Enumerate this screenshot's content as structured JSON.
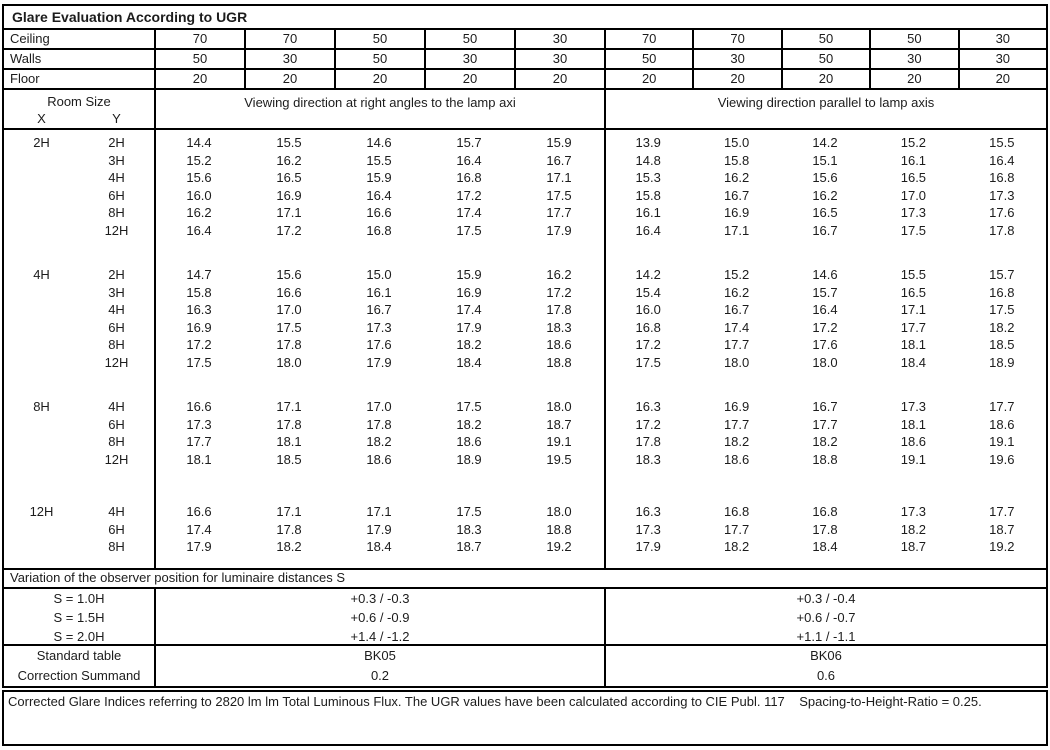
{
  "title": "Glare Evaluation According to UGR",
  "surfaces": {
    "rows": [
      {
        "label": "Ceiling",
        "values": [
          "70",
          "70",
          "50",
          "50",
          "30",
          "70",
          "70",
          "50",
          "50",
          "30"
        ]
      },
      {
        "label": "Walls",
        "values": [
          "50",
          "30",
          "50",
          "30",
          "30",
          "50",
          "30",
          "50",
          "30",
          "30"
        ]
      },
      {
        "label": "Floor",
        "values": [
          "20",
          "20",
          "20",
          "20",
          "20",
          "20",
          "20",
          "20",
          "20",
          "20"
        ]
      }
    ]
  },
  "header": {
    "room_size": "Room Size",
    "x": "X",
    "y": "Y",
    "left_group": "Viewing direction at right angles to the lamp axi",
    "right_group": "Viewing direction parallel to lamp axis"
  },
  "ugr_table": {
    "blocks": [
      {
        "x": "2H",
        "rows": [
          {
            "y": "2H",
            "values": [
              "14.4",
              "15.5",
              "14.6",
              "15.7",
              "15.9",
              "13.9",
              "15.0",
              "14.2",
              "15.2",
              "15.5"
            ]
          },
          {
            "y": "3H",
            "values": [
              "15.2",
              "16.2",
              "15.5",
              "16.4",
              "16.7",
              "14.8",
              "15.8",
              "15.1",
              "16.1",
              "16.4"
            ]
          },
          {
            "y": "4H",
            "values": [
              "15.6",
              "16.5",
              "15.9",
              "16.8",
              "17.1",
              "15.3",
              "16.2",
              "15.6",
              "16.5",
              "16.8"
            ]
          },
          {
            "y": "6H",
            "values": [
              "16.0",
              "16.9",
              "16.4",
              "17.2",
              "17.5",
              "15.8",
              "16.7",
              "16.2",
              "17.0",
              "17.3"
            ]
          },
          {
            "y": "8H",
            "values": [
              "16.2",
              "17.1",
              "16.6",
              "17.4",
              "17.7",
              "16.1",
              "16.9",
              "16.5",
              "17.3",
              "17.6"
            ]
          },
          {
            "y": "12H",
            "values": [
              "16.4",
              "17.2",
              "16.8",
              "17.5",
              "17.9",
              "16.4",
              "17.1",
              "16.7",
              "17.5",
              "17.8"
            ]
          }
        ]
      },
      {
        "x": "4H",
        "rows": [
          {
            "y": "2H",
            "values": [
              "14.7",
              "15.6",
              "15.0",
              "15.9",
              "16.2",
              "14.2",
              "15.2",
              "14.6",
              "15.5",
              "15.7"
            ]
          },
          {
            "y": "3H",
            "values": [
              "15.8",
              "16.6",
              "16.1",
              "16.9",
              "17.2",
              "15.4",
              "16.2",
              "15.7",
              "16.5",
              "16.8"
            ]
          },
          {
            "y": "4H",
            "values": [
              "16.3",
              "17.0",
              "16.7",
              "17.4",
              "17.8",
              "16.0",
              "16.7",
              "16.4",
              "17.1",
              "17.5"
            ]
          },
          {
            "y": "6H",
            "values": [
              "16.9",
              "17.5",
              "17.3",
              "17.9",
              "18.3",
              "16.8",
              "17.4",
              "17.2",
              "17.7",
              "18.2"
            ]
          },
          {
            "y": "8H",
            "values": [
              "17.2",
              "17.8",
              "17.6",
              "18.2",
              "18.6",
              "17.2",
              "17.7",
              "17.6",
              "18.1",
              "18.5"
            ]
          },
          {
            "y": "12H",
            "values": [
              "17.5",
              "18.0",
              "17.9",
              "18.4",
              "18.8",
              "17.5",
              "18.0",
              "18.0",
              "18.4",
              "18.9"
            ]
          }
        ]
      },
      {
        "x": "8H",
        "rows": [
          {
            "y": "4H",
            "values": [
              "16.6",
              "17.1",
              "17.0",
              "17.5",
              "18.0",
              "16.3",
              "16.9",
              "16.7",
              "17.3",
              "17.7"
            ]
          },
          {
            "y": "6H",
            "values": [
              "17.3",
              "17.8",
              "17.8",
              "18.2",
              "18.7",
              "17.2",
              "17.7",
              "17.7",
              "18.1",
              "18.6"
            ]
          },
          {
            "y": "8H",
            "values": [
              "17.7",
              "18.1",
              "18.2",
              "18.6",
              "19.1",
              "17.8",
              "18.2",
              "18.2",
              "18.6",
              "19.1"
            ]
          },
          {
            "y": "12H",
            "values": [
              "18.1",
              "18.5",
              "18.6",
              "18.9",
              "19.5",
              "18.3",
              "18.6",
              "18.8",
              "19.1",
              "19.6"
            ]
          }
        ]
      },
      {
        "x": "12H",
        "rows": [
          {
            "y": "4H",
            "values": [
              "16.6",
              "17.1",
              "17.1",
              "17.5",
              "18.0",
              "16.3",
              "16.8",
              "16.8",
              "17.3",
              "17.7"
            ]
          },
          {
            "y": "6H",
            "values": [
              "17.4",
              "17.8",
              "17.9",
              "18.3",
              "18.8",
              "17.3",
              "17.7",
              "17.8",
              "18.2",
              "18.7"
            ]
          },
          {
            "y": "8H",
            "values": [
              "17.9",
              "18.2",
              "18.4",
              "18.7",
              "19.2",
              "17.9",
              "18.2",
              "18.4",
              "18.7",
              "19.2"
            ]
          }
        ]
      }
    ]
  },
  "variation": {
    "label": "Variation of the observer position for luminaire distances S",
    "rows": [
      {
        "label": "S = 1.0H",
        "left": "+0.3 / -0.3",
        "right": "+0.3 / -0.4"
      },
      {
        "label": "S = 1.5H",
        "left": "+0.6 / -0.9",
        "right": "+0.6 / -0.7"
      },
      {
        "label": "S = 2.0H",
        "left": "+1.4 / -1.2",
        "right": "+1.1 / -1.1"
      }
    ]
  },
  "summary": {
    "rows": [
      {
        "label": "Standard table",
        "left": "BK05",
        "right": "BK06"
      },
      {
        "label": "Correction Summand",
        "left": "0.2",
        "right": "0.6"
      }
    ]
  },
  "footer": "Corrected Glare Indices referring to 2820 lm lm Total Luminous Flux. The UGR values have been calculated according to CIE Publ. 117    Spacing-to-Height-Ratio = 0.25."
}
